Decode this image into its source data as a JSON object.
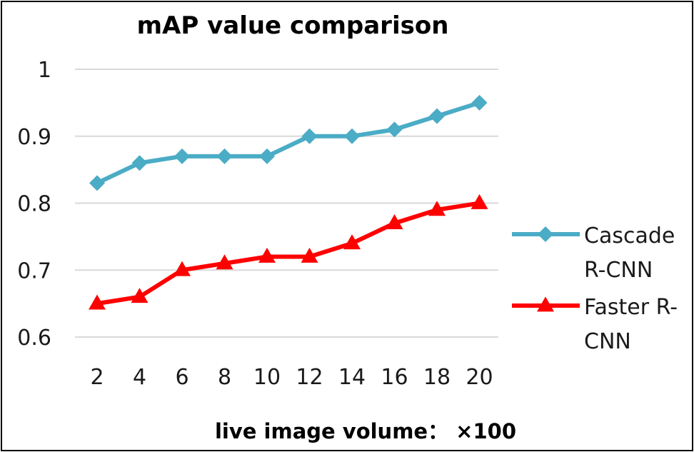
{
  "chart_data": {
    "type": "line",
    "title": "mAP value comparison",
    "xlabel": "live image volume： ×100",
    "ylabel": "",
    "categories": [
      "2",
      "4",
      "6",
      "8",
      "10",
      "12",
      "14",
      "16",
      "18",
      "20"
    ],
    "ylim": [
      0.6,
      1
    ],
    "yticks": [
      "0.6",
      "0.7",
      "0.8",
      "0.9",
      "1"
    ],
    "grid": true,
    "legend_position": "right",
    "series": [
      {
        "name": "Cascade R-CNN",
        "legend_lines": [
          "Cascade",
          "R-CNN"
        ],
        "color": "#4BACC6",
        "marker": "diamond",
        "values": [
          0.83,
          0.86,
          0.87,
          0.87,
          0.87,
          0.9,
          0.9,
          0.91,
          0.93,
          0.95
        ]
      },
      {
        "name": "Faster R-CNN",
        "legend_lines": [
          "Faster R-",
          "CNN"
        ],
        "color": "#FF0000",
        "marker": "triangle",
        "values": [
          0.65,
          0.66,
          0.7,
          0.71,
          0.72,
          0.72,
          0.74,
          0.77,
          0.79,
          0.8
        ]
      }
    ]
  }
}
